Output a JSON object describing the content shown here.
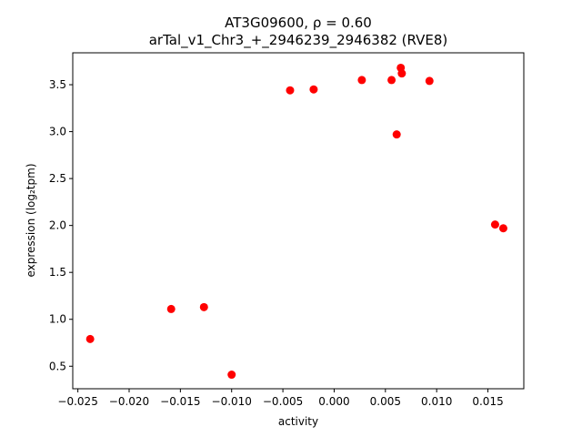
{
  "chart_data": {
    "type": "scatter",
    "title_line1": "AT3G09600, ρ = 0.60",
    "title_line2": "arTal_v1_Chr3_+_2946239_2946382 (RVE8)",
    "xlabel": "activity",
    "ylabel": "expression (log₂tpm)",
    "xlim": [
      -0.0255,
      0.0185
    ],
    "ylim": [
      0.26,
      3.84
    ],
    "xticks": [
      -0.025,
      -0.02,
      -0.015,
      -0.01,
      -0.005,
      0.0,
      0.005,
      0.01,
      0.015
    ],
    "xtick_labels": [
      "−0.025",
      "−0.020",
      "−0.015",
      "−0.010",
      "−0.005",
      "0.000",
      "0.005",
      "0.010",
      "0.015"
    ],
    "yticks": [
      0.5,
      1.0,
      1.5,
      2.0,
      2.5,
      3.0,
      3.5
    ],
    "ytick_labels": [
      "0.5",
      "1.0",
      "1.5",
      "2.0",
      "2.5",
      "3.0",
      "3.5"
    ],
    "marker_color": "#ff0000",
    "points": [
      {
        "x": -0.0238,
        "y": 0.79
      },
      {
        "x": -0.0159,
        "y": 1.11
      },
      {
        "x": -0.0127,
        "y": 1.13
      },
      {
        "x": -0.01,
        "y": 0.41
      },
      {
        "x": -0.0043,
        "y": 3.44
      },
      {
        "x": -0.002,
        "y": 3.45
      },
      {
        "x": 0.0027,
        "y": 3.55
      },
      {
        "x": 0.0056,
        "y": 3.55
      },
      {
        "x": 0.0061,
        "y": 2.97
      },
      {
        "x": 0.0065,
        "y": 3.68
      },
      {
        "x": 0.0066,
        "y": 3.62
      },
      {
        "x": 0.0093,
        "y": 3.54
      },
      {
        "x": 0.0157,
        "y": 2.01
      },
      {
        "x": 0.0165,
        "y": 1.97
      }
    ]
  }
}
